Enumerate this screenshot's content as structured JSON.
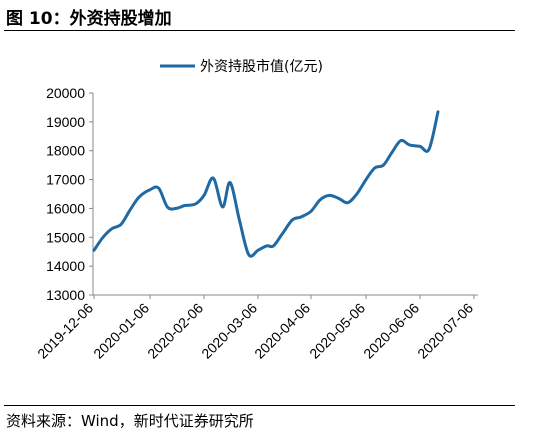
{
  "header": {
    "title": "图 10：外资持股增加"
  },
  "source": {
    "text": "资料来源：Wind，新时代证券研究所"
  },
  "chart_data": {
    "type": "line",
    "title": "",
    "xlabel": "",
    "ylabel": "",
    "ylim": [
      13000,
      20000
    ],
    "yticks": [
      "13000",
      "14000",
      "15000",
      "16000",
      "17000",
      "18000",
      "19000",
      "20000"
    ],
    "xticks": [
      "2019-12-06",
      "2020-01-06",
      "2020-02-06",
      "2020-03-06",
      "2020-04-06",
      "2020-05-06",
      "2020-06-06",
      "2020-07-06"
    ],
    "legend_position": "top-center",
    "grid": false,
    "color": "#1f6aa5",
    "series": [
      {
        "name": "外资持股市值(亿元)",
        "x": [
          "2019-12-06",
          "2019-12-11",
          "2019-12-16",
          "2019-12-21",
          "2019-12-26",
          "2019-12-31",
          "2020-01-06",
          "2020-01-11",
          "2020-01-16",
          "2020-01-21",
          "2020-01-26",
          "2020-02-01",
          "2020-02-06",
          "2020-02-11",
          "2020-02-16",
          "2020-02-20",
          "2020-02-25",
          "2020-03-01",
          "2020-03-06",
          "2020-03-11",
          "2020-03-15",
          "2020-03-20",
          "2020-03-26",
          "2020-03-31",
          "2020-04-06",
          "2020-04-11",
          "2020-04-16",
          "2020-04-21",
          "2020-04-26",
          "2020-05-01",
          "2020-05-06",
          "2020-05-11",
          "2020-05-16",
          "2020-05-21",
          "2020-05-26",
          "2020-05-31",
          "2020-06-06",
          "2020-06-11",
          "2020-06-16",
          "2020-06-21",
          "2020-06-26",
          "2020-07-01",
          "2020-07-06",
          "2020-07-08"
        ],
        "values": [
          14550,
          15000,
          15300,
          15450,
          15950,
          16400,
          16650,
          16700,
          16050,
          16000,
          16100,
          16150,
          16450,
          17050,
          16050,
          16900,
          15600,
          14400,
          14550,
          14700,
          14700,
          15100,
          15600,
          15700,
          15900,
          16300,
          16450,
          16350,
          16200,
          16500,
          17000,
          17400,
          17500,
          17950,
          18350,
          18200,
          18150,
          18050,
          19350,
          null,
          null,
          null,
          null,
          null
        ]
      }
    ]
  }
}
